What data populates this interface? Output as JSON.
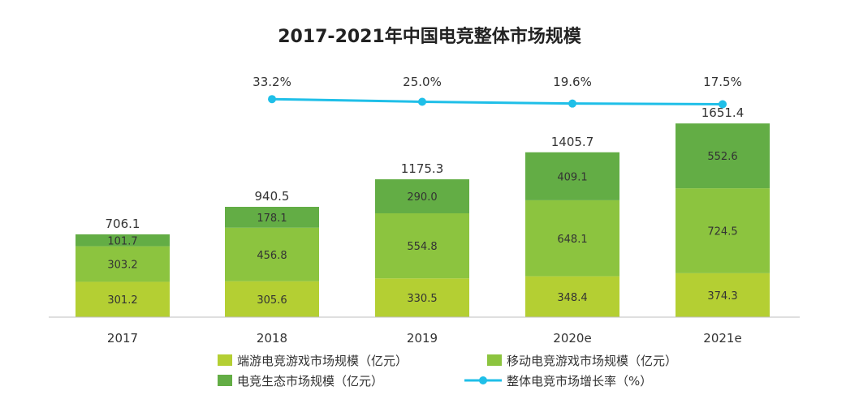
{
  "chart_data": {
    "type": "bar",
    "title": "2017-2021年中国电竞整体市场规模",
    "categories": [
      "2017",
      "2018",
      "2019",
      "2020e",
      "2021e"
    ],
    "series": [
      {
        "name": "端游电竞游戏市场规模（亿元）",
        "values": [
          301.2,
          305.6,
          330.5,
          348.4,
          374.3
        ],
        "color": "#b4cf33"
      },
      {
        "name": "移动电竞游戏市场规模（亿元）",
        "values": [
          303.2,
          456.8,
          554.8,
          648.1,
          724.5
        ],
        "color": "#8cc43f"
      },
      {
        "name": "电竞生态市场规模（亿元）",
        "values": [
          101.7,
          178.1,
          290.0,
          409.1,
          552.6
        ],
        "color": "#63ad45"
      }
    ],
    "totals": [
      "706.1",
      "940.5",
      "1175.3",
      "1405.7",
      "1651.4"
    ],
    "value_labels": [
      [
        "301.2",
        "305.6",
        "330.5",
        "348.4",
        "374.3"
      ],
      [
        "303.2",
        "456.8",
        "554.8",
        "648.1",
        "724.5"
      ],
      [
        "101.7",
        "178.1",
        "290.0",
        "409.1",
        "552.6"
      ]
    ],
    "line": {
      "name": "整体电竞市场增长率（%）",
      "categories": [
        "2018",
        "2019",
        "2020e",
        "2021e"
      ],
      "values": [
        33.2,
        25.0,
        19.6,
        17.5
      ],
      "labels": [
        "33.2%",
        "25.0%",
        "19.6%",
        "17.5%"
      ],
      "color": "#1fbfe8"
    },
    "ylim": [
      0,
      1700
    ],
    "grid": false,
    "legend": "bottom"
  }
}
